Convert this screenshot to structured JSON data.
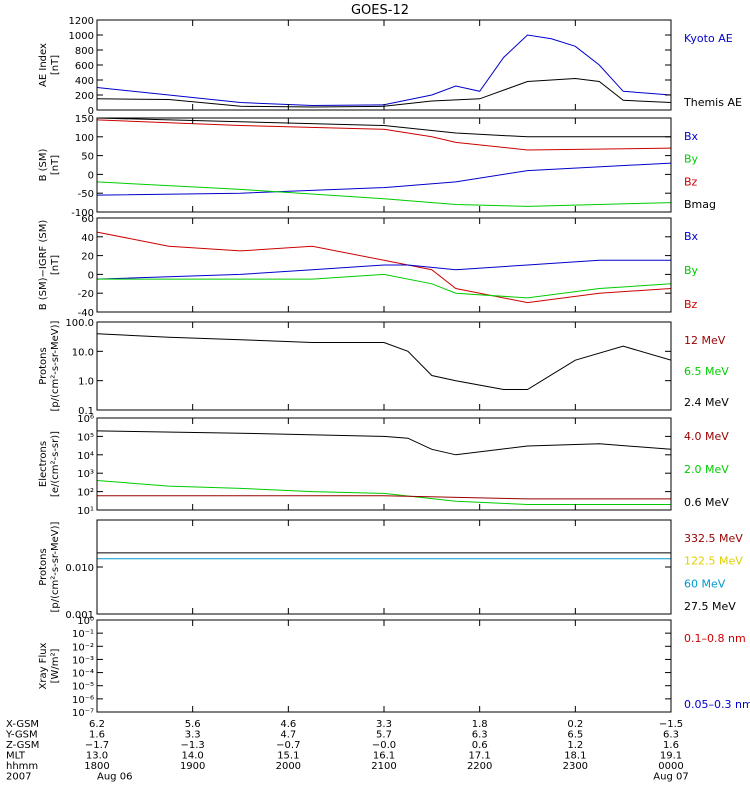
{
  "title": "GOES-12",
  "chart_data": [
    {
      "type": "line",
      "ylabel": "AE Index\n[nT]",
      "yscale": "linear",
      "ylim": [
        0,
        1200
      ],
      "yticks": [
        0,
        200,
        400,
        600,
        800,
        1000,
        1200
      ],
      "legend": [
        {
          "label": "Kyoto AE",
          "color": "#0000cc"
        },
        {
          "label": "Themis AE",
          "color": "#000000"
        }
      ],
      "series": [
        {
          "color": "#0000cc",
          "x": [
            0,
            3,
            6,
            9,
            12,
            14,
            15,
            16,
            17,
            18,
            19,
            20,
            21,
            22,
            24
          ],
          "y": [
            300,
            200,
            100,
            60,
            70,
            200,
            320,
            250,
            700,
            1000,
            950,
            850,
            600,
            250,
            200
          ]
        },
        {
          "color": "#000000",
          "x": [
            0,
            3,
            6,
            9,
            12,
            14,
            16,
            18,
            20,
            21,
            22,
            24
          ],
          "y": [
            150,
            140,
            50,
            40,
            50,
            120,
            150,
            380,
            420,
            380,
            130,
            100
          ]
        }
      ]
    },
    {
      "type": "line",
      "ylabel": "B (SM)\n[nT]",
      "yscale": "linear",
      "ylim": [
        -100,
        150
      ],
      "yticks": [
        -100,
        -50,
        0,
        50,
        100,
        150
      ],
      "legend": [
        {
          "label": "Bx",
          "color": "#0000cc"
        },
        {
          "label": "By",
          "color": "#00cc00"
        },
        {
          "label": "Bz",
          "color": "#cc0000"
        },
        {
          "label": "Bmag",
          "color": "#000000"
        }
      ],
      "series": [
        {
          "color": "#000000",
          "x": [
            0,
            6,
            12,
            15,
            18,
            24
          ],
          "y": [
            150,
            140,
            130,
            110,
            100,
            100
          ]
        },
        {
          "color": "#cc0000",
          "x": [
            0,
            6,
            12,
            14,
            15,
            18,
            24
          ],
          "y": [
            145,
            130,
            120,
            100,
            85,
            65,
            70
          ]
        },
        {
          "color": "#0000cc",
          "x": [
            0,
            6,
            12,
            15,
            18,
            24
          ],
          "y": [
            -55,
            -50,
            -35,
            -20,
            10,
            30
          ]
        },
        {
          "color": "#00cc00",
          "x": [
            0,
            6,
            12,
            15,
            18,
            24
          ],
          "y": [
            -20,
            -40,
            -65,
            -80,
            -85,
            -75
          ]
        }
      ]
    },
    {
      "type": "line",
      "ylabel": "B (SM)−IGRF (SM)\n[nT]",
      "yscale": "linear",
      "ylim": [
        -40,
        60
      ],
      "yticks": [
        -40,
        -20,
        0,
        20,
        40,
        60
      ],
      "legend": [
        {
          "label": "Bx",
          "color": "#0000cc"
        },
        {
          "label": "By",
          "color": "#00cc00"
        },
        {
          "label": "Bz",
          "color": "#cc0000"
        }
      ],
      "series": [
        {
          "color": "#cc0000",
          "x": [
            0,
            3,
            6,
            9,
            12,
            13,
            14,
            15,
            18,
            21,
            24
          ],
          "y": [
            45,
            30,
            25,
            30,
            15,
            10,
            5,
            -15,
            -30,
            -20,
            -15
          ]
        },
        {
          "color": "#0000cc",
          "x": [
            0,
            6,
            9,
            12,
            13,
            15,
            18,
            21,
            24
          ],
          "y": [
            -5,
            0,
            5,
            10,
            10,
            5,
            10,
            15,
            15
          ]
        },
        {
          "color": "#00cc00",
          "x": [
            0,
            6,
            9,
            12,
            14,
            15,
            18,
            21,
            24
          ],
          "y": [
            -5,
            -5,
            -5,
            0,
            -10,
            -20,
            -25,
            -15,
            -10
          ]
        }
      ]
    },
    {
      "type": "line",
      "ylabel": "Protons\n[p/(cm²-s-sr-MeV)]",
      "yscale": "log",
      "ylim": [
        0.1,
        100
      ],
      "yticks": [
        0.1,
        1.0,
        10.0,
        100.0
      ],
      "ytick_labels": [
        "0.1",
        "1.0",
        "10.0",
        "100.0"
      ],
      "legend": [
        {
          "label": "12 MeV",
          "color": "#990000"
        },
        {
          "label": "6.5 MeV",
          "color": "#00cc00"
        },
        {
          "label": "2.4 MeV",
          "color": "#000000"
        }
      ],
      "series": [
        {
          "color": "#000000",
          "x": [
            0,
            3,
            6,
            9,
            12,
            13,
            14,
            15,
            17,
            18,
            20,
            22,
            24
          ],
          "y": [
            40,
            30,
            25,
            20,
            20,
            10,
            1.5,
            1,
            0.5,
            0.5,
            5,
            15,
            5
          ]
        }
      ]
    },
    {
      "type": "line",
      "ylabel": "Electrons\n[e/(cm²-s-sr)]",
      "yscale": "log",
      "ylim": [
        10,
        1000000
      ],
      "yticks": [
        10,
        100,
        1000,
        10000,
        100000,
        1000000
      ],
      "ytick_labels": [
        "10¹",
        "10²",
        "10³",
        "10⁴",
        "10⁵",
        "10⁶"
      ],
      "legend": [
        {
          "label": "4.0 MeV",
          "color": "#990000"
        },
        {
          "label": "2.0 MeV",
          "color": "#00cc00"
        },
        {
          "label": "0.6 MeV",
          "color": "#000000"
        }
      ],
      "series": [
        {
          "color": "#000000",
          "x": [
            0,
            6,
            12,
            13,
            14,
            15,
            18,
            21,
            24
          ],
          "y": [
            200000,
            150000,
            100000,
            80000,
            20000,
            10000,
            30000,
            40000,
            20000
          ]
        },
        {
          "color": "#00cc00",
          "x": [
            0,
            3,
            6,
            9,
            12,
            15,
            18,
            24
          ],
          "y": [
            400,
            200,
            150,
            100,
            80,
            30,
            20,
            20
          ]
        },
        {
          "color": "#990000",
          "x": [
            0,
            6,
            12,
            18,
            24
          ],
          "y": [
            60,
            60,
            60,
            40,
            40
          ]
        }
      ]
    },
    {
      "type": "line",
      "ylabel": "Protons\n[p/(cm²-s-sr-MeV)]",
      "yscale": "log",
      "ylim": [
        0.001,
        0.1
      ],
      "yticks": [
        0.001,
        0.01
      ],
      "ytick_labels": [
        "0.001",
        "0.010"
      ],
      "legend": [
        {
          "label": "332.5 MeV",
          "color": "#990000"
        },
        {
          "label": "122.5 MeV",
          "color": "#e0d000"
        },
        {
          "label": "60 MeV",
          "color": "#0099cc"
        },
        {
          "label": "27.5 MeV",
          "color": "#000000"
        }
      ],
      "series": [
        {
          "color": "#000000",
          "x": [
            0,
            24
          ],
          "y": [
            0.02,
            0.02
          ]
        },
        {
          "color": "#0099cc",
          "x": [
            0,
            24
          ],
          "y": [
            0.015,
            0.015
          ]
        }
      ]
    },
    {
      "type": "line",
      "ylabel": "Xray Flux\n[W/m²]",
      "yscale": "log",
      "ylim": [
        1e-07,
        1
      ],
      "yticks": [
        1e-07,
        1e-06,
        1e-05,
        0.0001,
        0.001,
        0.01,
        0.1,
        1
      ],
      "ytick_labels": [
        "10⁻⁷",
        "10⁻⁶",
        "10⁻⁵",
        "10⁻⁴",
        "10⁻³",
        "10⁻²",
        "10⁻¹",
        "10⁰"
      ],
      "legend": [
        {
          "label": "0.1–0.8 nm",
          "color": "#cc0000"
        },
        {
          "label": "0.05–0.3 nm",
          "color": "#0000cc"
        }
      ],
      "series": []
    }
  ],
  "xaxis": {
    "range_hours": [
      0,
      24
    ],
    "ticks_hours": [
      0,
      4,
      8,
      12,
      16,
      20,
      24
    ],
    "row_labels": [
      "X-GSM",
      "Y-GSM",
      "Z-GSM",
      "MLT",
      "hhmm",
      "2007"
    ],
    "columns": [
      [
        "6.2",
        "1.6",
        "−1.7",
        "13.0",
        "1800",
        "Aug 06"
      ],
      [
        "5.6",
        "3.3",
        "−1.3",
        "14.0",
        "1900",
        ""
      ],
      [
        "4.6",
        "4.7",
        "−0.7",
        "15.1",
        "2000",
        ""
      ],
      [
        "3.3",
        "5.7",
        "−0.0",
        "16.1",
        "2100",
        ""
      ],
      [
        "1.8",
        "6.3",
        "0.6",
        "17.1",
        "2200",
        ""
      ],
      [
        "0.2",
        "6.5",
        "1.2",
        "18.1",
        "2300",
        ""
      ],
      [
        "−1.5",
        "6.3",
        "1.6",
        "19.1",
        "0000",
        "Aug 07"
      ]
    ]
  }
}
